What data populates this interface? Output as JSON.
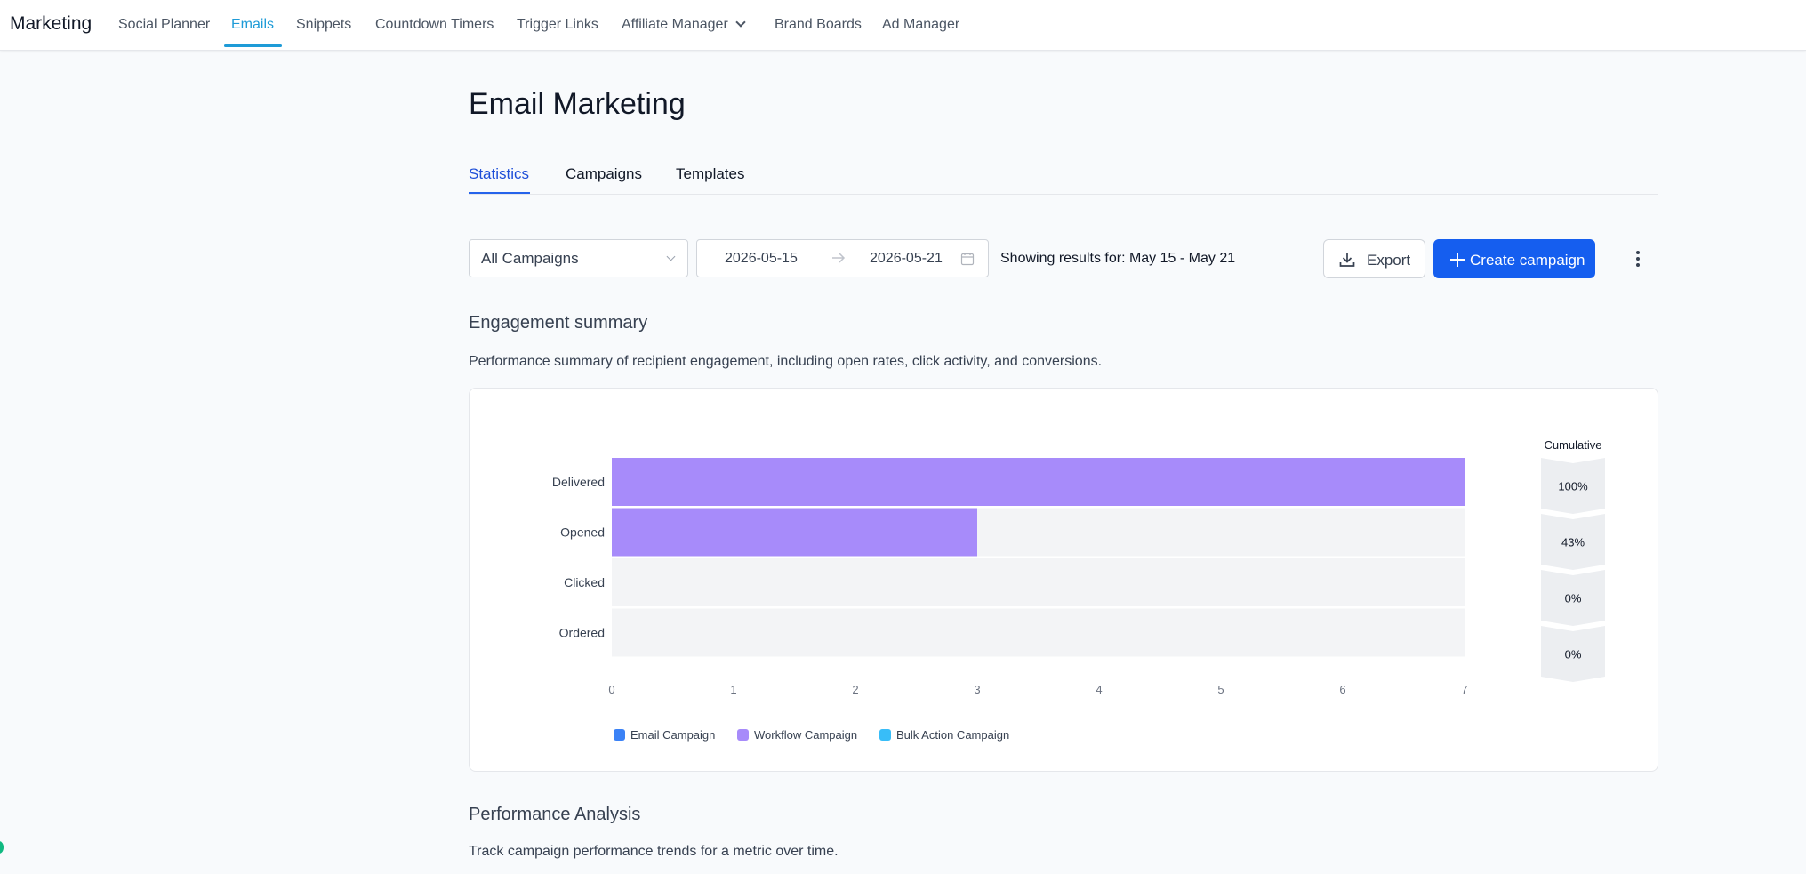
{
  "nav": {
    "brand": "Marketing",
    "items": [
      "Social Planner",
      "Emails",
      "Snippets",
      "Countdown Timers",
      "Trigger Links",
      "Affiliate Manager",
      "Brand Boards",
      "Ad Manager"
    ],
    "active": "Emails",
    "dropdown_item": "Affiliate Manager"
  },
  "page": {
    "title": "Email Marketing",
    "tabs": [
      "Statistics",
      "Campaigns",
      "Templates"
    ],
    "active_tab": "Statistics"
  },
  "filters": {
    "campaign_select": "All Campaigns",
    "date_start": "2026-05-15",
    "date_end": "2026-05-21",
    "results_text": "Showing results for: May 15 - May 21",
    "export_label": "Export",
    "create_label": "Create campaign"
  },
  "engagement": {
    "title": "Engagement summary",
    "description": "Performance summary of recipient engagement, including open rates, click activity, and conversions."
  },
  "chart_data": {
    "type": "bar",
    "orientation": "horizontal",
    "categories": [
      "Delivered",
      "Opened",
      "Clicked",
      "Ordered"
    ],
    "series": [
      {
        "name": "Email Campaign",
        "values": [
          0,
          0,
          0,
          0
        ],
        "color": "#3b82f6"
      },
      {
        "name": "Workflow Campaign",
        "values": [
          7,
          3,
          0,
          0
        ],
        "color": "#a78bfa"
      },
      {
        "name": "Bulk Action Campaign",
        "values": [
          0,
          0,
          0,
          0
        ],
        "color": "#38bdf8"
      }
    ],
    "xticks": [
      "0",
      "1",
      "2",
      "3",
      "4",
      "5",
      "6",
      "7"
    ],
    "xlim": [
      0,
      7
    ],
    "cumulative_label": "Cumulative",
    "cumulative": [
      "100%",
      "43%",
      "0%",
      "0%"
    ],
    "legend_position": "bottom-left",
    "track_color": "#f3f4f6"
  },
  "performance": {
    "title": "Performance Analysis",
    "description": "Track campaign performance trends for a metric over time."
  },
  "colors": {
    "accent_nav": "#1e9bd7",
    "primary_button": "#155eef",
    "tab_active": "#1d4ed8"
  }
}
